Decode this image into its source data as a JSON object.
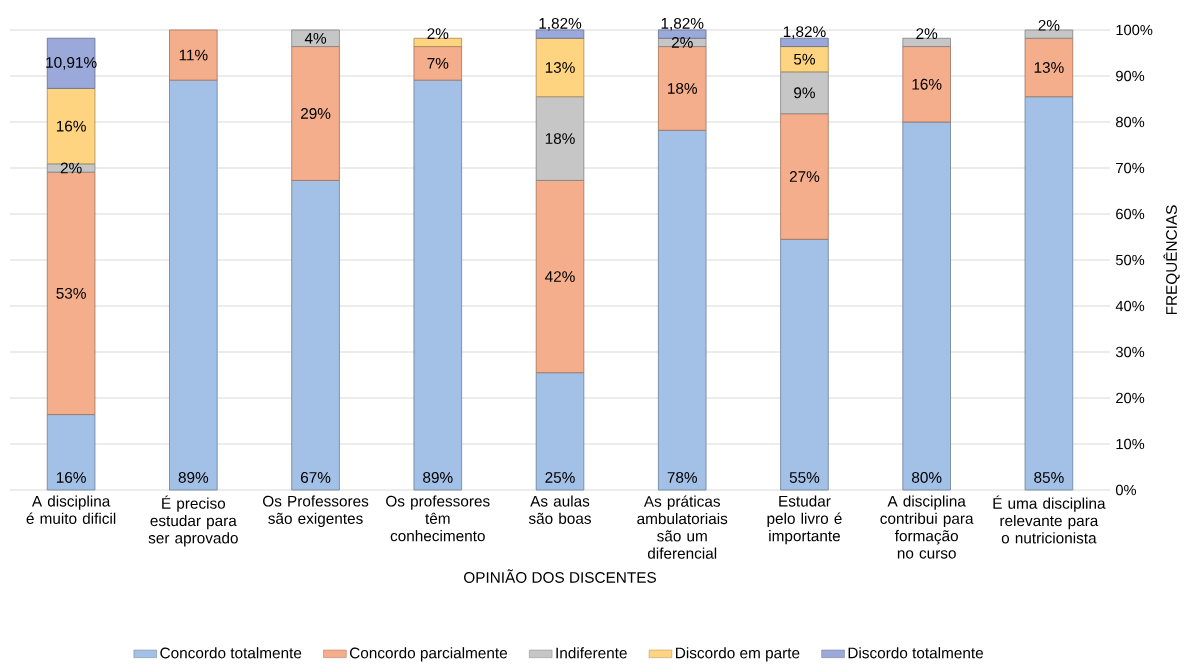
{
  "chart_data": {
    "type": "bar",
    "stacked": true,
    "xlabel": "OPINIÃO DOS DISCENTES",
    "ylabel": "FREQUÊNCIAS",
    "categories": [
      "A disciplina é muito dificil",
      "É preciso estudar para ser aprovado",
      "Os Professores são exigentes",
      "Os professores têm conhecimento",
      "As aulas são boas",
      "As práticas ambulatoriais são um diferencial",
      "Estudar pelo livro é importante",
      "A disciplina contribui para formação no curso",
      "É uma disciplina relevante para o nutricionista"
    ],
    "series": [
      {
        "name": "Concordo totalmente",
        "color": "#a3c1e6",
        "values": [
          16.4,
          89.1,
          67.3,
          89.1,
          25.5,
          78.2,
          54.5,
          80.0,
          85.5
        ],
        "value_labels": [
          "16%",
          "89%",
          "67%",
          "89%",
          "25%",
          "78%",
          "55%",
          "80%",
          "85%"
        ]
      },
      {
        "name": "Concordo parcialmente",
        "color": "#f5ae8c",
        "values": [
          52.7,
          10.9,
          29.1,
          7.3,
          41.8,
          18.2,
          27.3,
          16.4,
          12.7
        ],
        "value_labels": [
          "53%",
          "11%",
          "29%",
          "7%",
          "42%",
          "18%",
          "27%",
          "16%",
          "13%"
        ]
      },
      {
        "name": "Indiferente",
        "color": "#c6c6c6",
        "values": [
          1.8,
          null,
          3.6,
          null,
          18.2,
          1.8,
          9.1,
          1.8,
          1.8
        ],
        "value_labels": [
          "2%",
          null,
          "4%",
          null,
          "18%",
          "2%",
          "9%",
          "2%",
          "2%"
        ]
      },
      {
        "name": "Discordo em parte",
        "color": "#ffd480",
        "values": [
          16.4,
          null,
          null,
          1.8,
          12.7,
          null,
          5.5,
          null,
          null
        ],
        "value_labels": [
          "16%",
          null,
          null,
          "2%",
          "13%",
          null,
          "5%",
          null,
          null
        ]
      },
      {
        "name": "Discordo totalmente",
        "color": "#9aa9d9",
        "values": [
          10.91,
          null,
          null,
          null,
          1.82,
          1.82,
          1.82,
          null,
          null
        ],
        "value_labels": [
          "10,91%",
          null,
          null,
          null,
          "1,82%",
          "1,82%",
          "1,82%",
          null,
          null
        ]
      }
    ],
    "ylim": [
      0,
      100
    ],
    "yticks": [
      {
        "value": 0,
        "label": "0%"
      },
      {
        "value": 10,
        "label": "10%"
      },
      {
        "value": 20,
        "label": "20%"
      },
      {
        "value": 30,
        "label": "30%"
      },
      {
        "value": 40,
        "label": "40%"
      },
      {
        "value": 50,
        "label": "50%"
      },
      {
        "value": 60,
        "label": "60%"
      },
      {
        "value": 70,
        "label": "70%"
      },
      {
        "value": 80,
        "label": "80%"
      },
      {
        "value": 90,
        "label": "90%"
      },
      {
        "value": 100,
        "label": "100%"
      }
    ],
    "grid": "y",
    "legend": "bottom"
  }
}
